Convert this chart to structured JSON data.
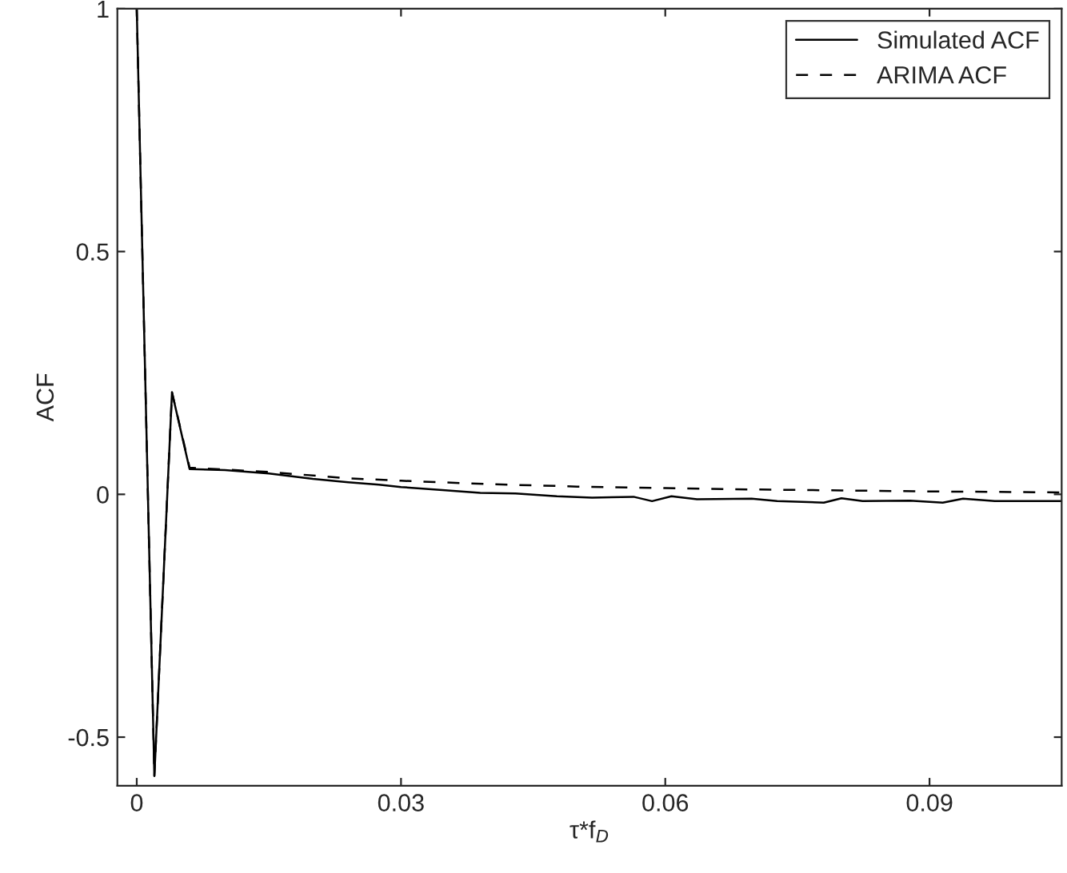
{
  "chart_data": {
    "type": "line",
    "xlabel": "τ*f$_{D}$",
    "ylabel": "ACF",
    "xlim": [
      -0.0022,
      0.105
    ],
    "ylim": [
      -0.6,
      1
    ],
    "xticks": [
      0,
      0.03,
      0.06,
      0.09
    ],
    "yticks": [
      -0.5,
      0,
      0.5,
      1
    ],
    "grid": false,
    "legend": "top right",
    "marker": "none",
    "series": [
      {
        "name": "Simulated ACF",
        "color": "#000000",
        "line_style": "solid",
        "x": [
          0,
          0.002,
          0.004,
          0.006,
          0.01,
          0.015,
          0.02,
          0.024,
          0.0275,
          0.03,
          0.0347,
          0.039,
          0.043,
          0.0477,
          0.0517,
          0.0564,
          0.0585,
          0.0607,
          0.0636,
          0.0698,
          0.0727,
          0.078,
          0.08,
          0.0824,
          0.0878,
          0.0915,
          0.0938,
          0.0974,
          0.105
        ],
        "values": [
          1,
          -0.58,
          0.21,
          0.052,
          0.05,
          0.043,
          0.032,
          0.025,
          0.02,
          0.015,
          0.009,
          0.003,
          0.002,
          -0.004,
          -0.007,
          -0.005,
          -0.014,
          -0.004,
          -0.01,
          -0.009,
          -0.014,
          -0.017,
          -0.008,
          -0.014,
          -0.013,
          -0.017,
          -0.009,
          -0.014,
          -0.014
        ]
      },
      {
        "name": "ARIMA ACF",
        "color": "#000000",
        "line_style": "dashed",
        "x": [
          0,
          0.002,
          0.004,
          0.006,
          0.015,
          0.024,
          0.03,
          0.04,
          0.05,
          0.06,
          0.07,
          0.08,
          0.09,
          0.105
        ],
        "values": [
          1,
          -0.58,
          0.21,
          0.055,
          0.046,
          0.033,
          0.028,
          0.021,
          0.016,
          0.013,
          0.01,
          0.008,
          0.006,
          0.004
        ]
      }
    ]
  }
}
